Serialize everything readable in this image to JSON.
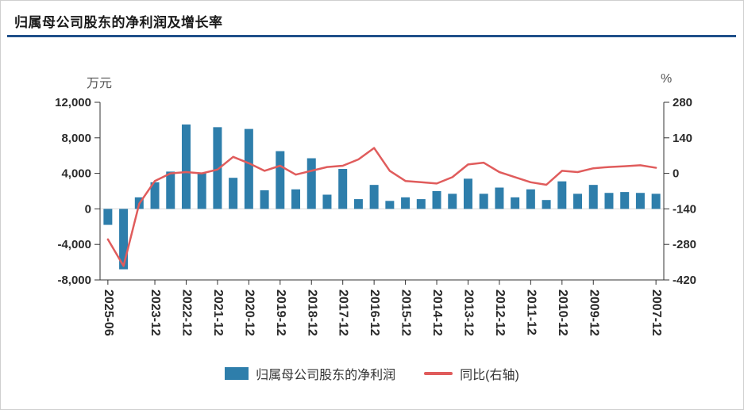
{
  "page": {
    "title": "归属母公司股东的净利润及增长率"
  },
  "colors": {
    "bar": "#2e7eab",
    "line": "#e05c5c",
    "title_underline": "#20508a",
    "axis": "#333333",
    "zero_line": "#d9d9d9"
  },
  "chart_data": {
    "type": "bar",
    "title": "归属母公司股东的净利润及增长率",
    "grid": false,
    "legend_position": "bottom",
    "left_axis": {
      "unit": "万元",
      "min": -8000,
      "max": 12000,
      "ticks": [
        {
          "v": 12000,
          "label": "12,000"
        },
        {
          "v": 8000,
          "label": "8,000"
        },
        {
          "v": 4000,
          "label": "4,000"
        },
        {
          "v": 0,
          "label": "0"
        },
        {
          "v": -4000,
          "label": "-4,000"
        },
        {
          "v": -8000,
          "label": "-8,000"
        }
      ]
    },
    "right_axis": {
      "unit": "%",
      "min": -420,
      "max": 280,
      "ticks": [
        {
          "v": 280,
          "label": "280"
        },
        {
          "v": 140,
          "label": "140"
        },
        {
          "v": 0,
          "label": "0"
        },
        {
          "v": -140,
          "label": "-140"
        },
        {
          "v": -280,
          "label": "-280"
        },
        {
          "v": -420,
          "label": "-420"
        }
      ]
    },
    "categories": [
      "2025-06",
      "2024-12",
      "2024-06",
      "2023-12",
      "2023-06",
      "2022-12",
      "2022-06",
      "2021-12",
      "2021-06",
      "2020-12",
      "2020-06",
      "2019-12",
      "2019-06",
      "2018-12",
      "2018-06",
      "2017-12",
      "2017-06",
      "2016-12",
      "2016-06",
      "2015-12",
      "2015-06",
      "2014-12",
      "2014-06",
      "2013-12",
      "2013-06",
      "2012-12",
      "2012-06",
      "2011-12",
      "2011-06",
      "2010-12",
      "2010-06",
      "2009-12",
      "2009-06",
      "2008-12",
      "2008-06",
      "2007-12"
    ],
    "x_labels_visible": [
      "2025-06",
      "2023-12",
      "2022-12",
      "2021-12",
      "2020-12",
      "2019-12",
      "2018-12",
      "2017-12",
      "2016-12",
      "2015-12",
      "2014-12",
      "2013-12",
      "2012-12",
      "2011-12",
      "2010-12",
      "2009-12",
      "2007-12"
    ],
    "series": [
      {
        "name": "归属母公司股东的净利润",
        "type": "bar",
        "axis": "left",
        "values": [
          -1800,
          -6800,
          1300,
          3000,
          4200,
          9500,
          4000,
          9200,
          3500,
          9000,
          2100,
          6500,
          2200,
          5700,
          1600,
          4500,
          1100,
          2700,
          900,
          1300,
          1100,
          2000,
          1700,
          3400,
          1700,
          2400,
          1300,
          2200,
          1000,
          3100,
          1700,
          2700,
          1800,
          1900,
          1800,
          1700
        ]
      },
      {
        "name": "同比(右轴)",
        "type": "line",
        "axis": "right",
        "values": [
          -260,
          -365,
          -120,
          -30,
          0,
          5,
          0,
          15,
          65,
          40,
          10,
          30,
          -5,
          10,
          25,
          30,
          55,
          100,
          10,
          -30,
          -35,
          -40,
          -15,
          35,
          42,
          5,
          -15,
          -35,
          -45,
          10,
          5,
          20,
          25,
          28,
          32,
          22
        ]
      }
    ],
    "legend": [
      {
        "label": "归属母公司股东的净利润",
        "type": "bar"
      },
      {
        "label": "同比(右轴)",
        "type": "line"
      }
    ]
  }
}
